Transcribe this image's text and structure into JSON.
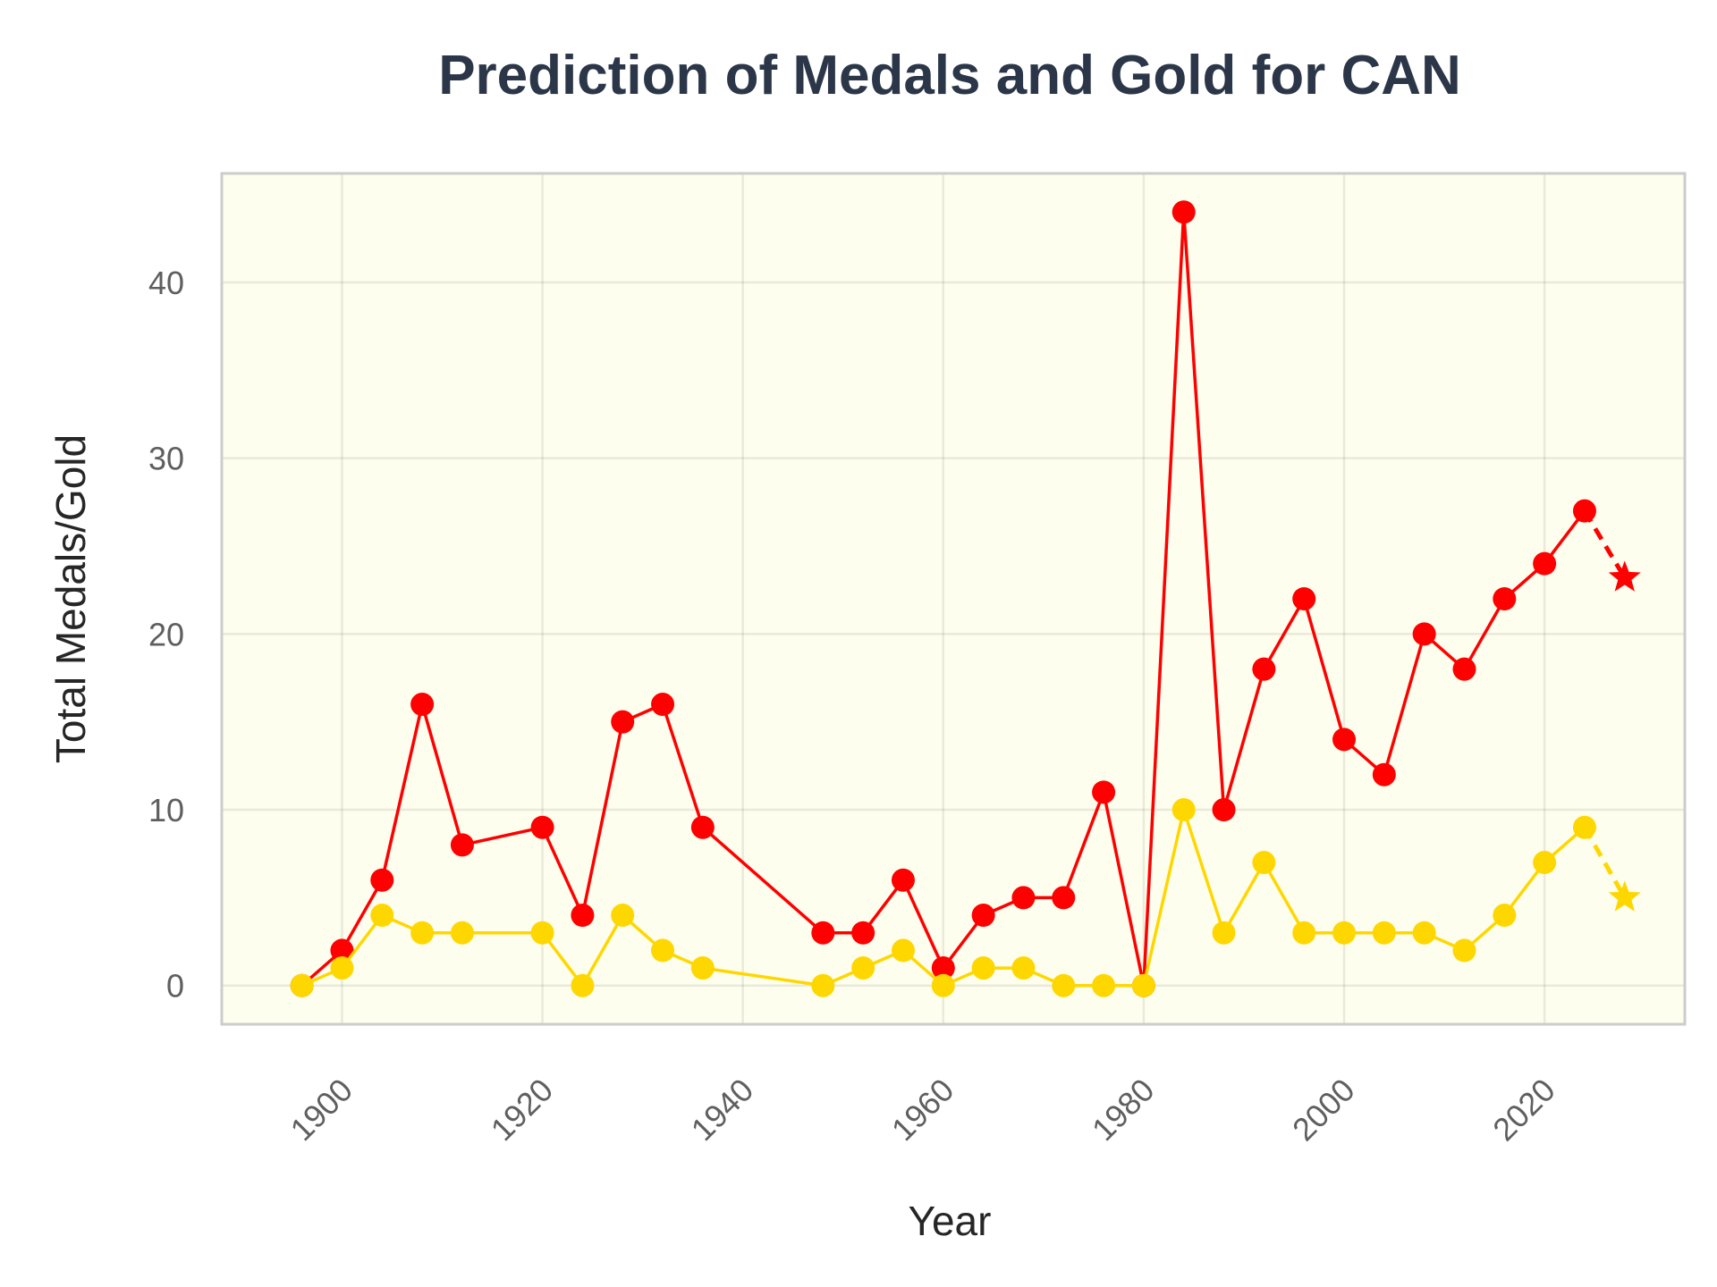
{
  "chart_data": {
    "type": "line",
    "title": "Prediction of Medals and Gold for CAN",
    "xlabel": "Year",
    "ylabel": "Total Medals/Gold",
    "xlim": [
      1888,
      2034
    ],
    "ylim": [
      -2.2,
      46.2
    ],
    "xticks": [
      1900,
      1920,
      1940,
      1960,
      1980,
      2000,
      2020
    ],
    "yticks": [
      0,
      10,
      20,
      30,
      40
    ],
    "grid": true,
    "background": "#fefeee",
    "frame_color": "#cccccc",
    "series": [
      {
        "color": "#ff0000",
        "x": [
          1896,
          1900,
          1904,
          1908,
          1912,
          1920,
          1924,
          1928,
          1932,
          1936,
          1948,
          1952,
          1956,
          1960,
          1964,
          1968,
          1972,
          1976,
          1980,
          1984,
          1988,
          1992,
          1996,
          2000,
          2004,
          2008,
          2012,
          2016,
          2020,
          2024
        ],
        "values": [
          0,
          2,
          6,
          16,
          8,
          9,
          4,
          15,
          16,
          9,
          3,
          3,
          6,
          1,
          4,
          5,
          5,
          11,
          0,
          44,
          10,
          18,
          22,
          14,
          12,
          20,
          18,
          22,
          24,
          27
        ],
        "prediction": {
          "x": [
            2024,
            2028
          ],
          "values": [
            27,
            23.2
          ]
        }
      },
      {
        "color": "#ffd700",
        "x": [
          1896,
          1900,
          1904,
          1908,
          1912,
          1920,
          1924,
          1928,
          1932,
          1936,
          1948,
          1952,
          1956,
          1960,
          1964,
          1968,
          1972,
          1976,
          1980,
          1984,
          1988,
          1992,
          1996,
          2000,
          2004,
          2008,
          2012,
          2016,
          2020,
          2024
        ],
        "values": [
          0,
          1,
          4,
          3,
          3,
          3,
          0,
          4,
          2,
          1,
          0,
          1,
          2,
          0,
          1,
          1,
          0,
          0,
          0,
          10,
          3,
          7,
          3,
          3,
          3,
          3,
          2,
          4,
          7,
          9
        ],
        "prediction": {
          "x": [
            2024,
            2028
          ],
          "values": [
            9,
            5
          ]
        }
      }
    ]
  }
}
